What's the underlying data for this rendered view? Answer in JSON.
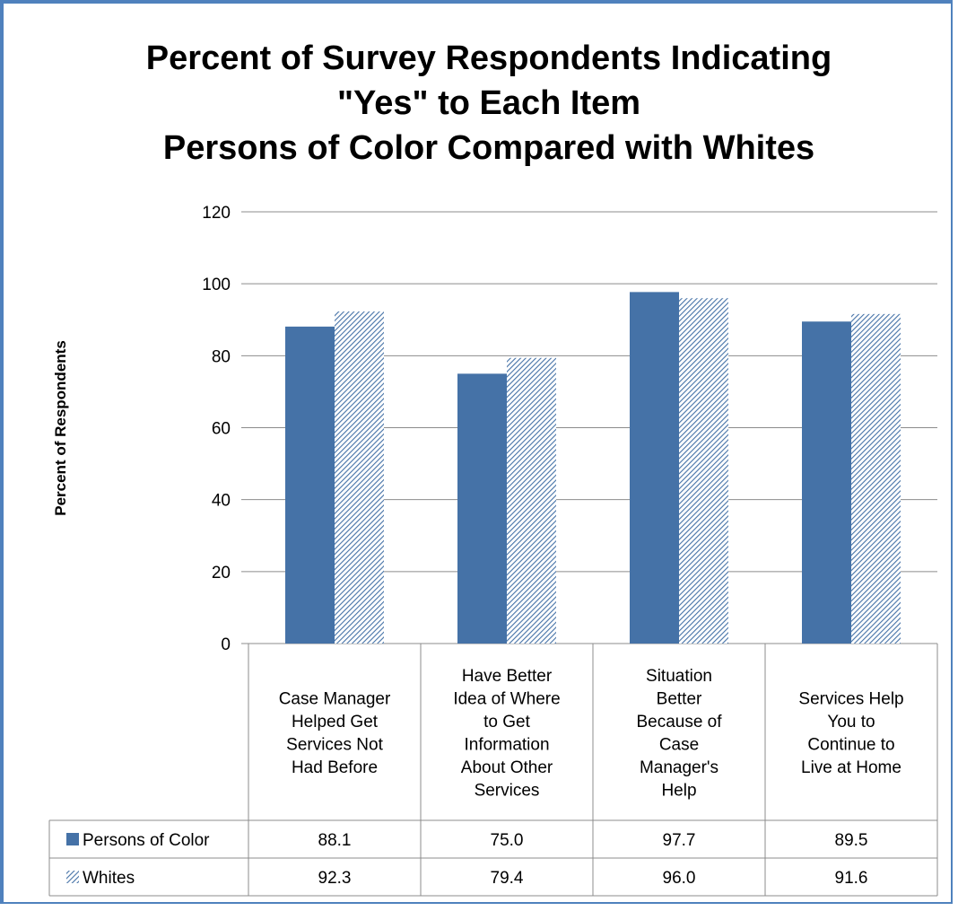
{
  "chart_data": {
    "type": "bar",
    "title_lines": [
      "Percent of Survey Respondents Indicating",
      "\"Yes\" to Each Item",
      "Persons of Color Compared with Whites"
    ],
    "ylabel": "Percent of Respondents",
    "xlabel": "",
    "ylim": [
      0,
      120
    ],
    "yticks": [
      0,
      20,
      40,
      60,
      80,
      100,
      120
    ],
    "grid": true,
    "legend_placement": "data-table",
    "categories": [
      [
        "Case Manager",
        "Helped Get",
        "Services Not",
        "Had Before"
      ],
      [
        "Have Better",
        "Idea of Where",
        "to Get",
        "Information",
        "About Other",
        "Services"
      ],
      [
        "Situation",
        "Better",
        "Because of",
        "Case",
        "Manager's",
        "Help"
      ],
      [
        "Services Help",
        "You to",
        "Continue to",
        "Live at Home"
      ]
    ],
    "series": [
      {
        "name": "Persons of Color",
        "values": [
          88.1,
          75.0,
          97.7,
          89.5
        ],
        "labels": [
          "88.1",
          "75.0",
          "97.7",
          "89.5"
        ],
        "color": "#4572a7",
        "fill": "solid"
      },
      {
        "name": "Whites",
        "values": [
          92.3,
          79.4,
          96.0,
          91.6
        ],
        "labels": [
          "92.3",
          "79.4",
          "96.0",
          "91.6"
        ],
        "color": "#4572a7",
        "fill": "hatched"
      }
    ]
  }
}
